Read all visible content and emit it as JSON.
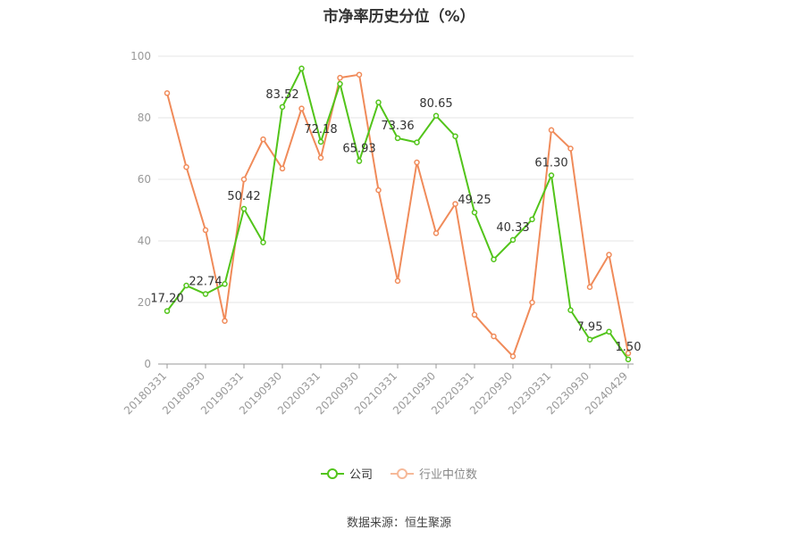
{
  "title": "市净率历史分位（%）",
  "source": "数据来源：恒生聚源",
  "chart_data": {
    "type": "line",
    "x": [
      "20180331",
      "20180630",
      "20180930",
      "20181231",
      "20190331",
      "20190630",
      "20190930",
      "20191231",
      "20200331",
      "20200630",
      "20200930",
      "20201231",
      "20210331",
      "20210630",
      "20210930",
      "20211231",
      "20220331",
      "20220630",
      "20220930",
      "20221231",
      "20230331",
      "20230630",
      "20230930",
      "20231231",
      "20240429"
    ],
    "x_tick_labels": [
      "20180331",
      "20180930",
      "20190331",
      "20190930",
      "20200331",
      "20200930",
      "20210331",
      "20210930",
      "20220331",
      "20220930",
      "20230331",
      "20230930",
      "20240429"
    ],
    "ylim": [
      0,
      100
    ],
    "y_ticks": [
      0,
      20,
      40,
      60,
      80,
      100
    ],
    "grid": true,
    "legend_position": "bottom",
    "series": [
      {
        "name": "公司",
        "color": "#52c41a",
        "values": [
          17.2,
          25.5,
          22.74,
          26.0,
          50.42,
          39.5,
          83.52,
          96.0,
          72.18,
          91.0,
          65.93,
          85.0,
          73.36,
          72.0,
          80.65,
          74.0,
          49.25,
          34.0,
          40.33,
          47.0,
          61.3,
          17.5,
          7.95,
          10.5,
          1.5
        ],
        "labels": [
          "17.20",
          null,
          "22.74",
          null,
          "50.42",
          null,
          "83.52",
          null,
          "72.18",
          null,
          "65.93",
          null,
          "73.36",
          null,
          "80.65",
          null,
          "49.25",
          null,
          "40.33",
          null,
          "61.30",
          null,
          "7.95",
          null,
          "1.50"
        ]
      },
      {
        "name": "行业中位数",
        "color": "#f08b5a",
        "values": [
          88.0,
          64.0,
          43.5,
          14.0,
          60.0,
          73.0,
          63.5,
          83.0,
          67.0,
          93.0,
          94.0,
          56.5,
          27.0,
          65.5,
          42.5,
          52.0,
          16.0,
          9.0,
          2.5,
          20.0,
          76.0,
          70.0,
          25.0,
          35.5,
          3.5
        ],
        "labels": []
      }
    ]
  }
}
